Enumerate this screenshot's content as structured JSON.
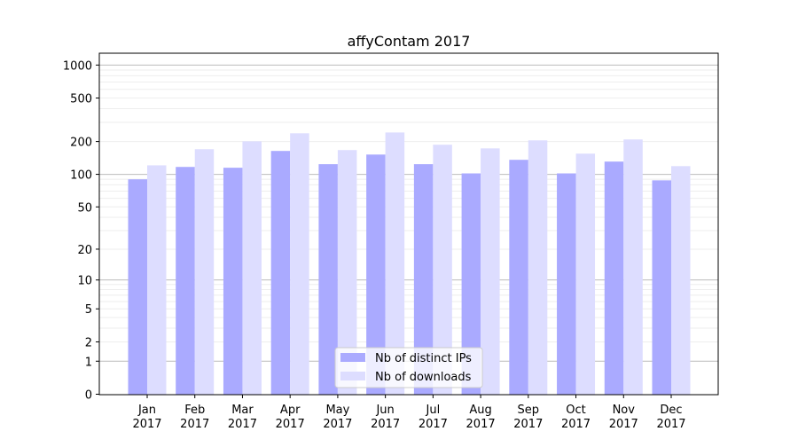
{
  "chart_data": {
    "type": "bar",
    "title": "affyContam 2017",
    "xlabel": "",
    "ylabel": "",
    "yscale": "symlog (log of value+1)",
    "ylim": [
      0,
      1275
    ],
    "yticks": [
      0,
      1,
      2,
      5,
      10,
      20,
      50,
      100,
      200,
      500,
      1000
    ],
    "categories": [
      "Jan\n2017",
      "Feb\n2017",
      "Mar\n2017",
      "Apr\n2017",
      "May\n2017",
      "Jun\n2017",
      "Jul\n2017",
      "Aug\n2017",
      "Sep\n2017",
      "Oct\n2017",
      "Nov\n2017",
      "Dec\n2017"
    ],
    "series": [
      {
        "name": "Nb of distinct IPs",
        "color": "#aaaaff",
        "values": [
          90,
          117,
          115,
          164,
          124,
          152,
          124,
          102,
          136,
          102,
          131,
          88
        ]
      },
      {
        "name": "Nb of downloads",
        "color": "#ddddff",
        "values": [
          121,
          170,
          201,
          238,
          167,
          242,
          187,
          173,
          205,
          155,
          209,
          119
        ]
      }
    ],
    "grid": true,
    "legend": "bottom-center"
  }
}
